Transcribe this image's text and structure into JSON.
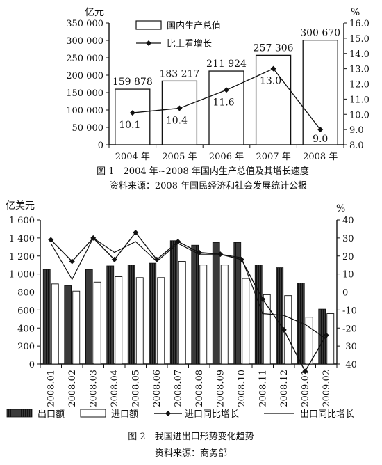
{
  "chart_data": [
    {
      "type": "bar",
      "title": "图 1　2004 年~2008 年国内生产总值及其增长速度",
      "source": "资料来源：2008 年国民经济和社会发展统计公报",
      "left_unit": "亿元",
      "right_unit": "%",
      "categories": [
        "2004 年",
        "2005 年",
        "2006 年",
        "2007 年",
        "2008 年"
      ],
      "series": [
        {
          "name": "国内生产总值",
          "kind": "bar",
          "axis": "left",
          "values": [
            159878,
            183217,
            211924,
            257306,
            300670
          ],
          "labels": [
            "159 878",
            "183 217",
            "211 924",
            "257 306",
            "300 670"
          ]
        },
        {
          "name": "比上看增长",
          "kind": "line",
          "axis": "right",
          "values": [
            10.1,
            10.4,
            11.6,
            13.0,
            9.0
          ],
          "labels": [
            "10.1",
            "10.4",
            "11.6",
            "13.0",
            "9.0"
          ]
        }
      ],
      "left_ylim": [
        0,
        350000
      ],
      "left_ticks": [
        0,
        50000,
        100000,
        150000,
        200000,
        250000,
        300000,
        350000
      ],
      "left_tick_labels": [
        "0",
        "50 000",
        "100 000",
        "150 000",
        "200 000",
        "250 000",
        "300 000",
        "350 000"
      ],
      "right_ylim": [
        8.0,
        16.0
      ],
      "right_ticks": [
        8,
        9,
        10,
        11,
        12,
        13,
        14,
        15,
        16
      ],
      "right_tick_labels": [
        "8.0",
        "9.0",
        "10.0",
        "11.0",
        "12.0",
        "13.0",
        "14.0",
        "15.0",
        "16.0"
      ],
      "legend_position": "top-left"
    },
    {
      "type": "bar",
      "title": "图 2　我国进出口形势变化趋势",
      "source": "资料来源：商务部",
      "left_unit": "亿美元",
      "right_unit": "%",
      "categories": [
        "2008.01",
        "2008.02",
        "2008.03",
        "2008.04",
        "2008.05",
        "2008.06",
        "2008.07",
        "2008.08",
        "2008.09",
        "2008.10",
        "2008.11",
        "2008.12",
        "2009.01",
        "2009.02"
      ],
      "series": [
        {
          "name": "出口额",
          "kind": "bar",
          "axis": "left",
          "values": [
            1050,
            870,
            1050,
            1090,
            1100,
            1120,
            1370,
            1320,
            1350,
            1350,
            1100,
            1070,
            900,
            610
          ]
        },
        {
          "name": "进口额",
          "kind": "bar",
          "axis": "left",
          "values": [
            890,
            810,
            910,
            970,
            960,
            960,
            1140,
            1100,
            1100,
            950,
            770,
            760,
            520,
            560
          ]
        },
        {
          "name": "进口同比增长",
          "kind": "line",
          "axis": "right",
          "values": [
            29,
            17,
            30,
            18,
            33,
            18,
            28,
            22,
            21,
            18,
            -4,
            -21,
            -44,
            -24
          ]
        },
        {
          "name": "出口同比增长",
          "kind": "line",
          "axis": "right",
          "values": [
            27,
            7,
            30,
            22,
            28,
            17,
            27,
            21,
            21,
            19,
            -12,
            -13,
            -18,
            -26
          ]
        }
      ],
      "left_ylim": [
        0,
        1600
      ],
      "left_ticks": [
        0,
        200,
        400,
        600,
        800,
        1000,
        1200,
        1400,
        1600
      ],
      "left_tick_labels": [
        "0",
        "200",
        "400",
        "600",
        "800",
        "1 000",
        "1 200",
        "1 400",
        "1 600"
      ],
      "right_ylim": [
        -40,
        40
      ],
      "right_ticks": [
        -40,
        -30,
        -20,
        -10,
        0,
        10,
        20,
        30,
        40
      ],
      "right_tick_labels": [
        "-40",
        "-30",
        "-20",
        "-10",
        "0",
        "10",
        "20",
        "30",
        "40"
      ],
      "legend_position": "bottom"
    }
  ]
}
